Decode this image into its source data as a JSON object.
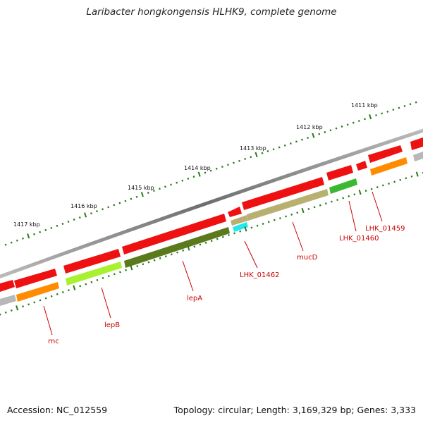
{
  "title": "Laribacter hongkongensis HLHK9, complete genome",
  "accession_text": "Accession: NC_012559",
  "topology_text": "Topology: circular; Length: 3,169,329 bp; Genes: 3,333",
  "kbp_labels": [
    "1411 kbp",
    "1412 kbp",
    "1413 kbp",
    "1414 kbp",
    "1415 kbp",
    "1416 kbp",
    "1417 kbp"
  ],
  "gene_labels": [
    "LHK_01459",
    "LHK_01460",
    "mucD",
    "LHK_01462",
    "lepA",
    "lepB",
    "rnc"
  ],
  "colors": {
    "cds": "#ee1111",
    "backbone": "#7a7a7a",
    "tick": "#2a7a1a",
    "label": "#cc0000",
    "orange": "#ff8c00",
    "olive_dark": "#5a7a1c",
    "olive_light": "#b8b070",
    "lime": "#a8f030",
    "cyan": "#22e8f0",
    "green": "#3ab830",
    "grey": "#b8b8b8"
  }
}
